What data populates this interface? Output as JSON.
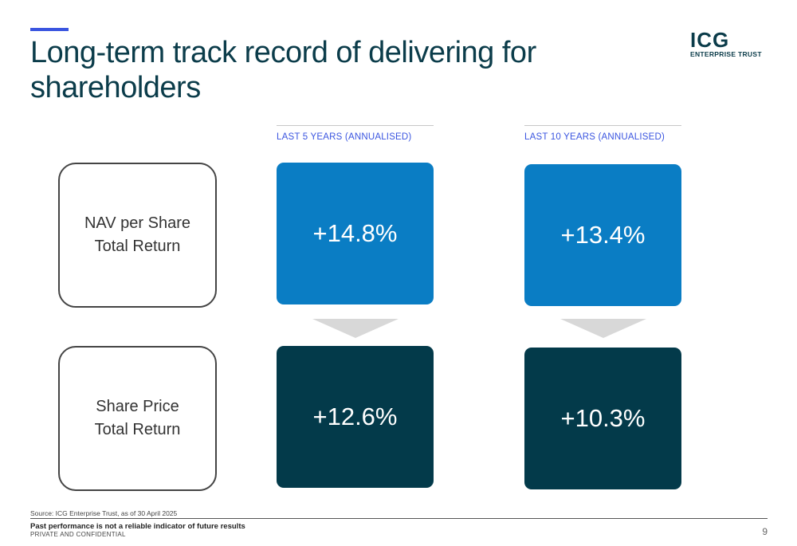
{
  "header": {
    "title_line1": "Long-term track record of delivering for",
    "title_line2": "shareholders",
    "logo_mark": "ICG",
    "logo_sub": "ENTERPRISE TRUST"
  },
  "columns": [
    {
      "label": "LAST 5 YEARS (ANNUALISED)"
    },
    {
      "label": "LAST 10 YEARS (ANNUALISED)"
    }
  ],
  "rows": [
    {
      "label_line1": "NAV per Share",
      "label_line2": "Total Return",
      "values": [
        "+14.8%",
        "+13.4%"
      ]
    },
    {
      "label_line1": "Share Price",
      "label_line2": "Total Return",
      "values": [
        "+12.6%",
        "+10.3%"
      ]
    }
  ],
  "footer": {
    "source": "Source: ICG Enterprise Trust, as of 30 April 2025",
    "disclaimer": "Past performance is not a reliable indicator of future results",
    "confidential": "PRIVATE AND CONFIDENTIAL",
    "page_number": "9"
  },
  "colors": {
    "accent": "#3a55e0",
    "title": "#0b3c4a",
    "nav_tile": "#0a7dc4",
    "share_price_tile": "#033a4a",
    "arrow": "#d8d8d8"
  }
}
